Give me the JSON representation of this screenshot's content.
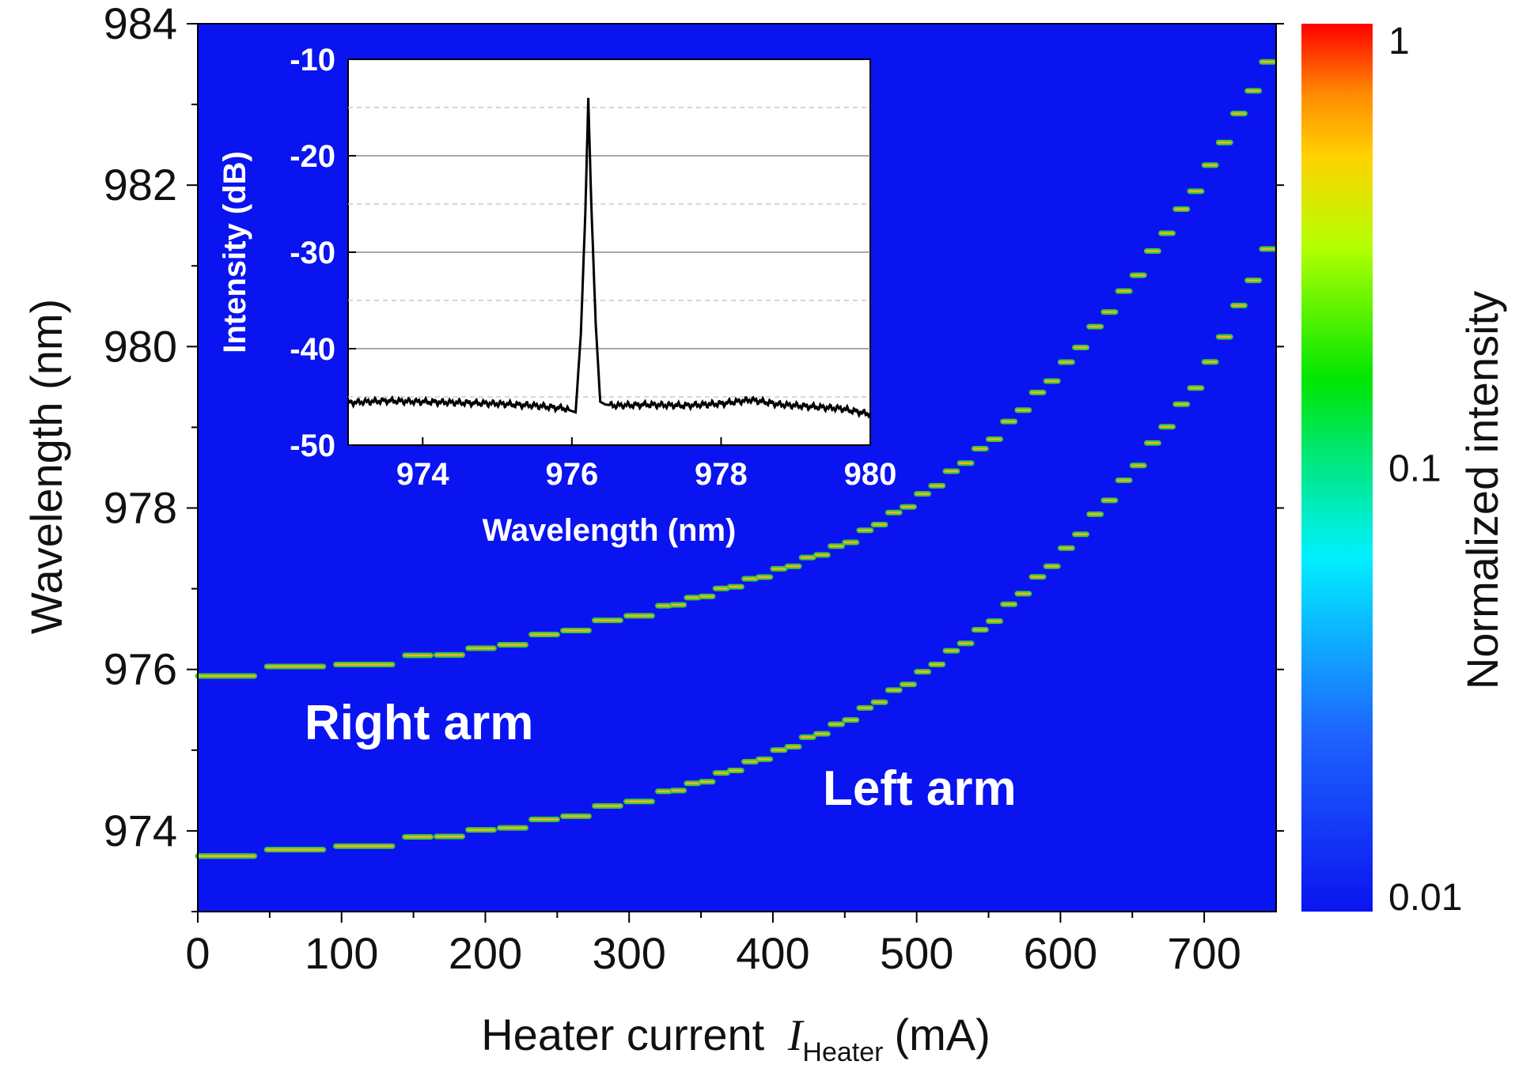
{
  "chart_data": [
    {
      "type": "heatmap",
      "xlabel": "Heater current",
      "xlabel_symbol": "I",
      "xlabel_subscript": "Heater",
      "xlabel_unit": "(mA)",
      "ylabel": "Wavelength (nm)",
      "xlim": [
        0,
        750
      ],
      "ylim": [
        973,
        984
      ],
      "xticks": [
        "0",
        "100",
        "200",
        "300",
        "400",
        "500",
        "600",
        "700"
      ],
      "yticks": [
        "974",
        "976",
        "978",
        "980",
        "982",
        "984"
      ],
      "background_color": "#0a14f0",
      "colorbar": {
        "label": "Normalized intensity",
        "scale": "log",
        "range": [
          0.01,
          1
        ],
        "tick_labels": [
          "1",
          "0.1",
          "0.01"
        ]
      },
      "annotations": [
        "Right arm",
        "Left arm"
      ],
      "series": [
        {
          "annotation": "Right arm",
          "x": [
            0,
            50,
            100,
            150,
            200,
            250,
            300,
            350,
            400,
            450,
            500,
            550,
            600,
            650,
            700,
            750
          ],
          "y": [
            975.9,
            976.0,
            976.05,
            976.15,
            976.25,
            976.45,
            976.65,
            976.9,
            977.2,
            977.55,
            978.1,
            978.8,
            979.7,
            980.8,
            982.1,
            983.7
          ]
        },
        {
          "annotation": "Left arm",
          "x": [
            0,
            50,
            100,
            150,
            200,
            250,
            300,
            350,
            400,
            450,
            500,
            550,
            600,
            650,
            700,
            750
          ],
          "y": [
            973.7,
            973.72,
            973.8,
            973.9,
            974.0,
            974.15,
            974.35,
            974.6,
            974.95,
            975.35,
            975.9,
            976.55,
            977.4,
            978.45,
            979.65,
            981.4
          ]
        }
      ]
    },
    {
      "type": "line",
      "inset": true,
      "xlabel": "Wavelength (nm)",
      "ylabel": "Intensity (dB)",
      "xlim": [
        973,
        980
      ],
      "ylim": [
        -50,
        -10
      ],
      "xticks": [
        "974",
        "976",
        "978",
        "980"
      ],
      "yticks": [
        "-10",
        "-20",
        "-30",
        "-40",
        "-50"
      ],
      "grid": true,
      "x": [
        973.0,
        973.5,
        974.0,
        974.5,
        975.0,
        975.5,
        975.9,
        976.05,
        976.12,
        976.18,
        976.22,
        976.26,
        976.32,
        976.38,
        976.45,
        976.6,
        977.0,
        977.5,
        978.0,
        978.4,
        978.8,
        979.2,
        979.6,
        980.0
      ],
      "y": [
        -45.6,
        -45.4,
        -45.5,
        -45.6,
        -45.7,
        -45.9,
        -46.2,
        -46.6,
        -38.5,
        -26.0,
        -14.0,
        -25.0,
        -37.5,
        -45.5,
        -45.8,
        -45.9,
        -45.8,
        -45.9,
        -45.7,
        -45.3,
        -45.8,
        -46.0,
        -46.2,
        -46.8
      ]
    }
  ]
}
